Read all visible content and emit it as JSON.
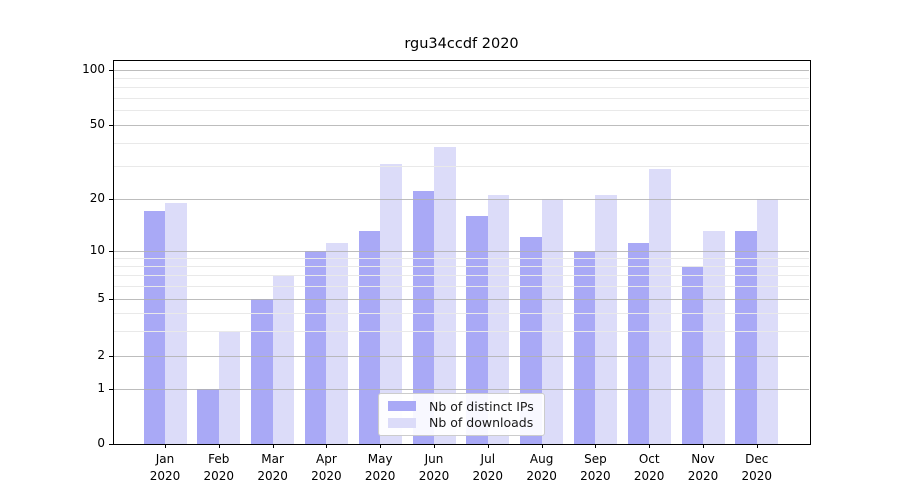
{
  "title": "rgu34ccdf 2020",
  "chart_data": {
    "type": "bar",
    "categories": [
      "Jan 2020",
      "Feb 2020",
      "Mar 2020",
      "Apr 2020",
      "May 2020",
      "Jun 2020",
      "Jul 2020",
      "Aug 2020",
      "Sep 2020",
      "Oct 2020",
      "Nov 2020",
      "Dec 2020"
    ],
    "month_labels": [
      "Jan",
      "Feb",
      "Mar",
      "Apr",
      "May",
      "Jun",
      "Jul",
      "Aug",
      "Sep",
      "Oct",
      "Nov",
      "Dec"
    ],
    "year_label": "2020",
    "series": [
      {
        "name": "Nb of distinct IPs",
        "color": "#a9a9f6",
        "values": [
          17,
          1,
          5,
          10,
          13,
          22,
          16,
          12,
          10,
          11,
          8,
          13
        ]
      },
      {
        "name": "Nb of downloads",
        "color": "#dcdcf9",
        "values": [
          19,
          3,
          7,
          11,
          31,
          38,
          21,
          20,
          21,
          29,
          13,
          20
        ]
      }
    ],
    "title": "rgu34ccdf 2020",
    "xlabel": "",
    "ylabel": "",
    "yscale": "symlog-like",
    "ylim": [
      0,
      113
    ],
    "ytick_values": [
      0,
      1,
      2,
      5,
      10,
      20,
      50,
      100
    ],
    "ytick_labels": [
      "0",
      "1",
      "2",
      "5",
      "10",
      "20",
      "50",
      "100"
    ],
    "minor_ytick_values": [
      3,
      4,
      6,
      7,
      8,
      9,
      30,
      40,
      60,
      70,
      80,
      90
    ],
    "grid": "on",
    "legend_position": "lower center",
    "colors": {
      "major_grid": "#b2b2b2",
      "minor_grid": "#e9e9e9",
      "spine": "#000000",
      "background": "#ffffff"
    }
  }
}
